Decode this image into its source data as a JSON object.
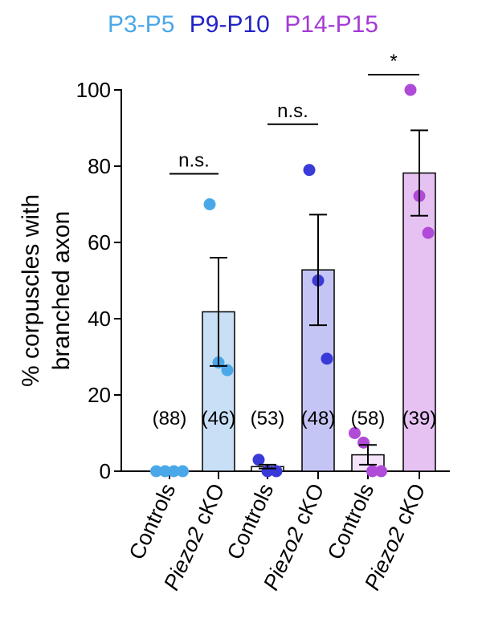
{
  "legend": [
    {
      "label": "P3-P5",
      "color": "#4aa8e8"
    },
    {
      "label": "P9-P10",
      "color": "#2323c8"
    },
    {
      "label": "P14-P15",
      "color": "#a43ad6"
    }
  ],
  "chart_data": {
    "type": "bar",
    "ylabel_line1": "% corpuscles with",
    "ylabel_line2": "branched axon",
    "ylim": [
      0,
      100
    ],
    "yticks": [
      0,
      20,
      40,
      60,
      80,
      100
    ],
    "categories": [
      "Controls",
      "Piezo2 cKO",
      "Controls",
      "Piezo2 cKO",
      "Controls",
      "Piezo2 cKO"
    ],
    "italic_prefix": "Piezo2",
    "groups": [
      {
        "age": "P3-P5",
        "category": "Controls",
        "mean": 0,
        "sem": 0,
        "n_label": "(88)",
        "points": [
          0,
          0,
          0,
          0
        ],
        "bar_fill": "#ffffff",
        "dot_color": "#4aa8e8"
      },
      {
        "age": "P3-P5",
        "category": "Piezo2 cKO",
        "mean": 41.8,
        "sem": 14.2,
        "n_label": "(46)",
        "points": [
          70,
          28.5,
          26.5
        ],
        "bar_fill": "#c8dff6",
        "dot_color": "#4aa8e8"
      },
      {
        "age": "P9-P10",
        "category": "Controls",
        "mean": 1.2,
        "sem": 0.5,
        "n_label": "(53)",
        "points": [
          3,
          0,
          0
        ],
        "bar_fill": "#ffffff",
        "dot_color": "#3a3ad8"
      },
      {
        "age": "P9-P10",
        "category": "Piezo2 cKO",
        "mean": 52.8,
        "sem": 14.5,
        "n_label": "(48)",
        "points": [
          79,
          50,
          29.5
        ],
        "bar_fill": "#c5c5f5",
        "dot_color": "#3a3ad8"
      },
      {
        "age": "P14-P15",
        "category": "Controls",
        "mean": 4.3,
        "sem": 2.6,
        "n_label": "(58)",
        "points": [
          10,
          7.5,
          0,
          0
        ],
        "bar_fill": "#f3e4fa",
        "dot_color": "#b04ad8"
      },
      {
        "age": "P14-P15",
        "category": "Piezo2 cKO",
        "mean": 78.2,
        "sem": 11.2,
        "n_label": "(39)",
        "points": [
          100,
          72.2,
          62.5
        ],
        "bar_fill": "#e6c2f3",
        "dot_color": "#b04ad8"
      }
    ],
    "significance": [
      {
        "from": 0,
        "to": 1,
        "label": "n.s.",
        "y": 78
      },
      {
        "from": 2,
        "to": 3,
        "label": "n.s.",
        "y": 91
      },
      {
        "from": 4,
        "to": 5,
        "label": "*",
        "y": 104
      }
    ]
  }
}
